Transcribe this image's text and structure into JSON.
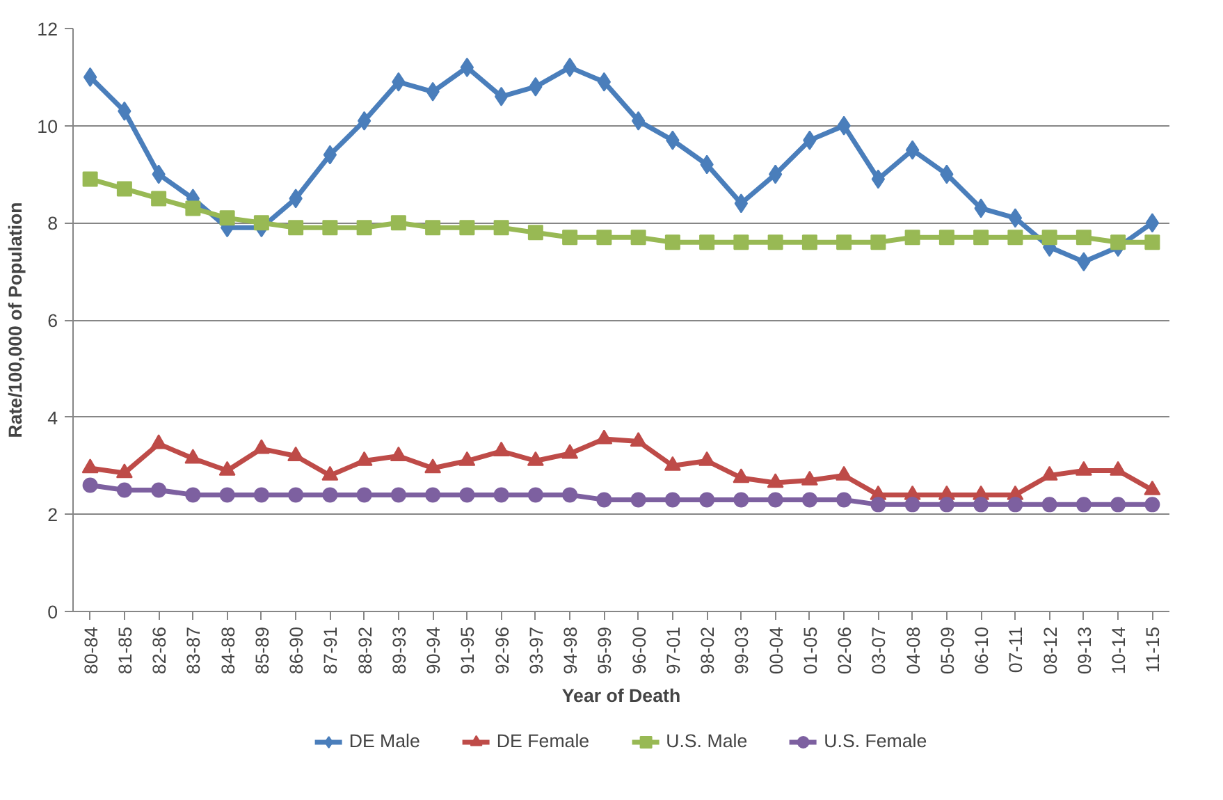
{
  "chart_data": {
    "type": "line",
    "xlabel": "Year of Death",
    "ylabel": "Rate/100,000 of Population",
    "categories": [
      "80-84",
      "81-85",
      "82-86",
      "83-87",
      "84-88",
      "85-89",
      "86-90",
      "87-91",
      "88-92",
      "89-93",
      "90-94",
      "91-95",
      "92-96",
      "93-97",
      "94-98",
      "95-99",
      "96-00",
      "97-01",
      "98-02",
      "99-03",
      "00-04",
      "01-05",
      "02-06",
      "03-07",
      "04-08",
      "05-09",
      "06-10",
      "07-11",
      "08-12",
      "09-13",
      "10-14",
      "11-15"
    ],
    "series": [
      {
        "name": "DE Male",
        "color": "#4a7ebb",
        "marker": "diamond",
        "values": [
          11.0,
          10.3,
          9.0,
          8.5,
          7.9,
          7.9,
          8.5,
          9.4,
          10.1,
          10.9,
          10.7,
          11.2,
          10.6,
          10.8,
          11.2,
          10.9,
          10.1,
          9.7,
          9.2,
          8.4,
          9.0,
          9.7,
          10.0,
          8.9,
          9.5,
          9.0,
          8.3,
          8.1,
          7.5,
          7.2,
          7.5,
          8.0
        ]
      },
      {
        "name": "DE Female",
        "color": "#be4b48",
        "marker": "triangle",
        "values": [
          2.95,
          2.85,
          3.45,
          3.15,
          2.9,
          3.35,
          3.2,
          2.8,
          3.1,
          3.2,
          2.95,
          3.1,
          3.3,
          3.1,
          3.25,
          3.55,
          3.5,
          3.0,
          3.1,
          2.75,
          2.65,
          2.7,
          2.8,
          2.4,
          2.4,
          2.4,
          2.4,
          2.4,
          2.8,
          2.9,
          2.9,
          2.5
        ]
      },
      {
        "name": "U.S. Male",
        "color": "#98b954",
        "marker": "square",
        "values": [
          8.9,
          8.7,
          8.5,
          8.3,
          8.1,
          8.0,
          7.9,
          7.9,
          7.9,
          8.0,
          7.9,
          7.9,
          7.9,
          7.8,
          7.7,
          7.7,
          7.7,
          7.6,
          7.6,
          7.6,
          7.6,
          7.6,
          7.6,
          7.6,
          7.7,
          7.7,
          7.7,
          7.7,
          7.7,
          7.7,
          7.6,
          7.6
        ]
      },
      {
        "name": "U.S. Female",
        "color": "#7d60a0",
        "marker": "circle",
        "values": [
          2.6,
          2.5,
          2.5,
          2.4,
          2.4,
          2.4,
          2.4,
          2.4,
          2.4,
          2.4,
          2.4,
          2.4,
          2.4,
          2.4,
          2.4,
          2.3,
          2.3,
          2.3,
          2.3,
          2.3,
          2.3,
          2.3,
          2.3,
          2.2,
          2.2,
          2.2,
          2.2,
          2.2,
          2.2,
          2.2,
          2.2,
          2.2
        ]
      }
    ],
    "ylim": [
      0,
      12
    ],
    "yticks": [
      0,
      2,
      4,
      6,
      8,
      10,
      12
    ],
    "grid": "y",
    "legend": "bottom",
    "line_style": "solid"
  }
}
